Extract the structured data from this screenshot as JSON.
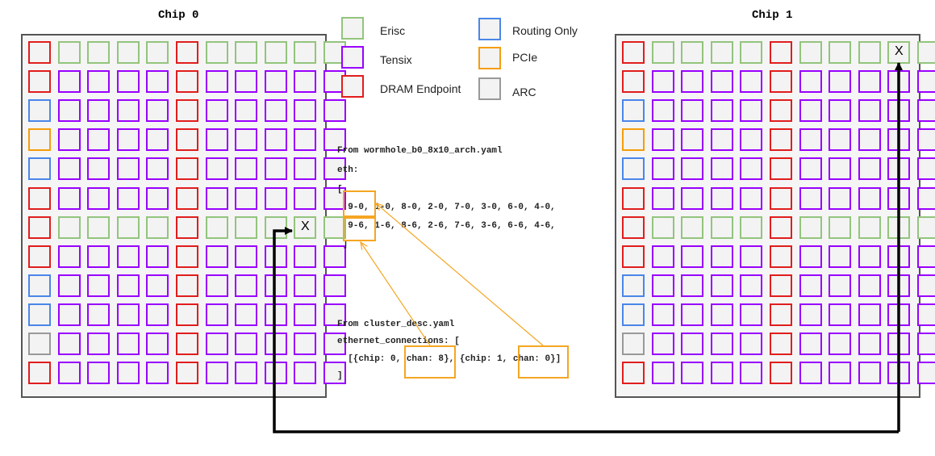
{
  "chips": [
    {
      "title": "Chip 0",
      "marker": "X"
    },
    {
      "title": "Chip 1",
      "marker": "X"
    }
  ],
  "legend": [
    {
      "type": "erisc",
      "label": "Erisc",
      "color": "#93c47d"
    },
    {
      "type": "tensix",
      "label": "Tensix",
      "color": "#9900ff"
    },
    {
      "type": "dram",
      "label": "DRAM Endpoint",
      "color": "#e11d1d"
    },
    {
      "type": "routing",
      "label": "Routing Only",
      "color": "#4a86e8"
    },
    {
      "type": "pcie",
      "label": "PCIe",
      "color": "#f59d0b"
    },
    {
      "type": "arc",
      "label": "ARC",
      "color": "#999999"
    }
  ],
  "grid_rows": [
    "DEEEEDEEEEE",
    "DTTTTDTTTTT",
    "RTTTTDTTTTT",
    "PTTTTDTTTTT",
    "RTTTTDTTTTT",
    "DTTTTDTTTTT",
    "DEEEEDEEEEE",
    "DTTTTDTTTTT",
    "RTTTTDTTTTT",
    "RTTTTDTTTTT",
    "ATTTTDTTTTT",
    "DTTTTDTTTTT"
  ],
  "arch_yaml": {
    "source": "From wormhole_b0_8x10_arch.yaml",
    "key": "eth:",
    "open": "[",
    "line1": "  9-0, 1-0, 8-0, 2-0, 7-0, 3-0, 6-0, 4-0,",
    "line2": "  9-6, 1-6, 8-6, 2-6, 7-6, 3-6, 6-6, 4-6,",
    "close": " ]"
  },
  "cluster_yaml": {
    "source": "From cluster_desc.yaml",
    "key": "ethernet_connections: [",
    "line": "  [{chip: 0, chan: 8}, {chip: 1, chan: 0}]",
    "close": "]"
  },
  "colors": {
    "highlight": "#f5a623",
    "connection": "#000000"
  }
}
